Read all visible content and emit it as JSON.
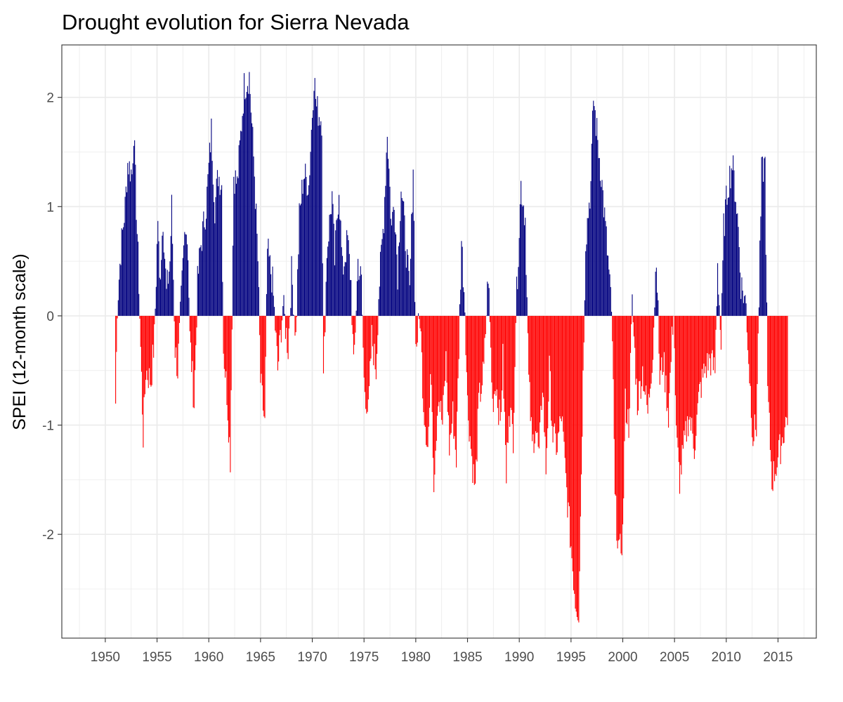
{
  "chart_data": {
    "type": "bar",
    "title": "Drought evolution for Sierra Nevada",
    "xlabel": "",
    "ylabel": "SPEI (12-month scale)",
    "x_ticks": [
      "1950",
      "1955",
      "1960",
      "1965",
      "1970",
      "1975",
      "1980",
      "1985",
      "1990",
      "1995",
      "2000",
      "2005",
      "2010",
      "2015"
    ],
    "y_ticks": [
      "-2",
      "-1",
      "0",
      "1",
      "2"
    ],
    "xlim": [
      1945.8,
      2018.7
    ],
    "ylim": [
      -2.95,
      2.48
    ],
    "grid": true,
    "legend": "none",
    "colors": {
      "positive": "#00007f",
      "negative": "#ff0000",
      "grid": "#ebebeb",
      "panel_border": "#333333"
    },
    "monthly_start": "1951-01",
    "monthly_end": "2015-12",
    "keyframes": [
      [
        "1951-01",
        -0.8
      ],
      [
        "1951-03",
        0.1
      ],
      [
        "1951-07",
        0.6
      ],
      [
        "1951-12",
        1.0
      ],
      [
        "1952-03",
        1.4
      ],
      [
        "1952-08",
        1.3
      ],
      [
        "1952-10",
        1.7
      ],
      [
        "1953-01",
        1.0
      ],
      [
        "1953-04",
        0.3
      ],
      [
        "1953-06",
        -0.3
      ],
      [
        "1953-09",
        -1.1
      ],
      [
        "1953-12",
        -0.5
      ],
      [
        "1954-06",
        -0.6
      ],
      [
        "1954-10",
        -0.2
      ],
      [
        "1955-02",
        0.9
      ],
      [
        "1955-04",
        0.3
      ],
      [
        "1955-08",
        0.9
      ],
      [
        "1955-12",
        0.2
      ],
      [
        "1956-04",
        0.5
      ],
      [
        "1956-06",
        1.0
      ],
      [
        "1956-10",
        -0.3
      ],
      [
        "1957-01",
        -0.5
      ],
      [
        "1957-06",
        0.3
      ],
      [
        "1957-10",
        0.9
      ],
      [
        "1958-01",
        0.6
      ],
      [
        "1958-03",
        -0.2
      ],
      [
        "1958-08",
        -0.8
      ],
      [
        "1958-12",
        0.3
      ],
      [
        "1959-03",
        0.6
      ],
      [
        "1959-10",
        1.0
      ],
      [
        "1960-04",
        1.7
      ],
      [
        "1960-08",
        1.0
      ],
      [
        "1960-12",
        1.3
      ],
      [
        "1961-04",
        1.2
      ],
      [
        "1961-06",
        -0.3
      ],
      [
        "1961-10",
        -0.7
      ],
      [
        "1962-02",
        -1.3
      ],
      [
        "1962-06",
        1.3
      ],
      [
        "1962-10",
        1.2
      ],
      [
        "1963-06",
        2.1
      ],
      [
        "1963-12",
        2.2
      ],
      [
        "1964-06",
        1.3
      ],
      [
        "1964-10",
        0.5
      ],
      [
        "1965-01",
        -0.6
      ],
      [
        "1965-06",
        -1.0
      ],
      [
        "1965-09",
        0.6
      ],
      [
        "1966-03",
        0.3
      ],
      [
        "1966-06",
        -0.1
      ],
      [
        "1966-09",
        -0.5
      ],
      [
        "1967-03",
        0.1
      ],
      [
        "1967-06",
        -0.1
      ],
      [
        "1967-09",
        -0.3
      ],
      [
        "1968-01",
        0.4
      ],
      [
        "1968-06",
        -0.2
      ],
      [
        "1968-10",
        0.9
      ],
      [
        "1969-03",
        1.3
      ],
      [
        "1969-09",
        1.2
      ],
      [
        "1970-03",
        2.2
      ],
      [
        "1970-06",
        1.9
      ],
      [
        "1970-12",
        1.8
      ],
      [
        "1971-02",
        -0.6
      ],
      [
        "1971-06",
        0.6
      ],
      [
        "1971-12",
        1.1
      ],
      [
        "1972-03",
        0.5
      ],
      [
        "1972-08",
        1.2
      ],
      [
        "1972-12",
        0.4
      ],
      [
        "1973-06",
        0.7
      ],
      [
        "1973-10",
        0.3
      ],
      [
        "1974-01",
        -0.5
      ],
      [
        "1974-06",
        0.5
      ],
      [
        "1974-10",
        0.3
      ],
      [
        "1975-01",
        -0.6
      ],
      [
        "1975-06",
        -0.9
      ],
      [
        "1975-10",
        -0.2
      ],
      [
        "1976-03",
        -0.5
      ],
      [
        "1976-06",
        0.2
      ],
      [
        "1976-12",
        0.9
      ],
      [
        "1977-04",
        1.7
      ],
      [
        "1977-09",
        0.8
      ],
      [
        "1977-12",
        1.1
      ],
      [
        "1978-04",
        0.4
      ],
      [
        "1978-08",
        1.2
      ],
      [
        "1978-12",
        0.8
      ],
      [
        "1979-06",
        0.2
      ],
      [
        "1979-10",
        1.4
      ],
      [
        "1980-01",
        -0.3
      ],
      [
        "1980-06",
        0.0
      ],
      [
        "1980-10",
        -0.8
      ],
      [
        "1981-03",
        -1.2
      ],
      [
        "1981-07",
        -0.5
      ],
      [
        "1981-10",
        -1.5
      ],
      [
        "1982-03",
        -0.7
      ],
      [
        "1982-08",
        -1.0
      ],
      [
        "1982-12",
        -0.4
      ],
      [
        "1983-04",
        -1.2
      ],
      [
        "1983-08",
        -0.9
      ],
      [
        "1983-12",
        -1.3
      ],
      [
        "1984-06",
        0.7
      ],
      [
        "1984-10",
        0.1
      ],
      [
        "1985-01",
        -0.8
      ],
      [
        "1985-06",
        -1.3
      ],
      [
        "1985-10",
        -1.6
      ],
      [
        "1986-02",
        -0.8
      ],
      [
        "1986-08",
        -0.5
      ],
      [
        "1987-01",
        0.4
      ],
      [
        "1987-06",
        -0.8
      ],
      [
        "1987-10",
        -0.6
      ],
      [
        "1988-03",
        -1.0
      ],
      [
        "1988-06",
        -0.4
      ],
      [
        "1988-10",
        -1.5
      ],
      [
        "1989-01",
        -0.8
      ],
      [
        "1989-06",
        -1.1
      ],
      [
        "1989-09",
        0.0
      ],
      [
        "1990-03",
        1.2
      ],
      [
        "1990-08",
        0.9
      ],
      [
        "1990-12",
        -0.6
      ],
      [
        "1991-04",
        -1.2
      ],
      [
        "1991-08",
        -1.0
      ],
      [
        "1991-12",
        -1.3
      ],
      [
        "1992-04",
        -0.6
      ],
      [
        "1992-08",
        -1.4
      ],
      [
        "1992-12",
        -0.5
      ],
      [
        "1993-04",
        -1.1
      ],
      [
        "1993-09",
        -1.2
      ],
      [
        "1994-02",
        -0.9
      ],
      [
        "1994-07",
        -1.5
      ],
      [
        "1995-01",
        -2.1
      ],
      [
        "1995-06",
        -2.6
      ],
      [
        "1995-10",
        -2.7
      ],
      [
        "1996-01",
        -1.4
      ],
      [
        "1996-06",
        0.7
      ],
      [
        "1996-12",
        1.2
      ],
      [
        "1997-03",
        2.0
      ],
      [
        "1997-08",
        1.6
      ],
      [
        "1997-12",
        1.3
      ],
      [
        "1998-06",
        0.7
      ],
      [
        "1998-10",
        0.3
      ],
      [
        "1999-01",
        -0.2
      ],
      [
        "1999-04",
        -1.7
      ],
      [
        "1999-09",
        -2.2
      ],
      [
        "2000-01",
        -2.0
      ],
      [
        "2000-04",
        -0.8
      ],
      [
        "2000-08",
        -1.0
      ],
      [
        "2000-12",
        0.1
      ],
      [
        "2001-06",
        -0.8
      ],
      [
        "2001-12",
        -0.5
      ],
      [
        "2002-06",
        -0.9
      ],
      [
        "2002-12",
        -0.3
      ],
      [
        "2003-04",
        0.6
      ],
      [
        "2003-08",
        -0.6
      ],
      [
        "2003-12",
        -0.4
      ],
      [
        "2004-06",
        -0.9
      ],
      [
        "2004-12",
        0.1
      ],
      [
        "2005-03",
        -1.1
      ],
      [
        "2005-07",
        -1.5
      ],
      [
        "2005-12",
        -1.2
      ],
      [
        "2006-06",
        -0.9
      ],
      [
        "2006-12",
        -1.2
      ],
      [
        "2007-06",
        -0.7
      ],
      [
        "2007-12",
        -0.5
      ],
      [
        "2008-06",
        -0.4
      ],
      [
        "2008-12",
        -0.5
      ],
      [
        "2009-03",
        0.5
      ],
      [
        "2009-07",
        -0.3
      ],
      [
        "2009-10",
        0.8
      ],
      [
        "2010-03",
        1.2
      ],
      [
        "2010-08",
        1.4
      ],
      [
        "2010-12",
        1.1
      ],
      [
        "2011-03",
        0.8
      ],
      [
        "2011-06",
        0.3
      ],
      [
        "2011-12",
        0.1
      ],
      [
        "2012-03",
        -0.4
      ],
      [
        "2012-08",
        -1.1
      ],
      [
        "2012-12",
        -1.0
      ],
      [
        "2013-06",
        1.3
      ],
      [
        "2013-10",
        1.4
      ],
      [
        "2014-01",
        -0.7
      ],
      [
        "2014-06",
        -1.5
      ],
      [
        "2014-10",
        -1.4
      ],
      [
        "2015-04",
        -1.2
      ],
      [
        "2015-12",
        -0.9
      ]
    ]
  }
}
